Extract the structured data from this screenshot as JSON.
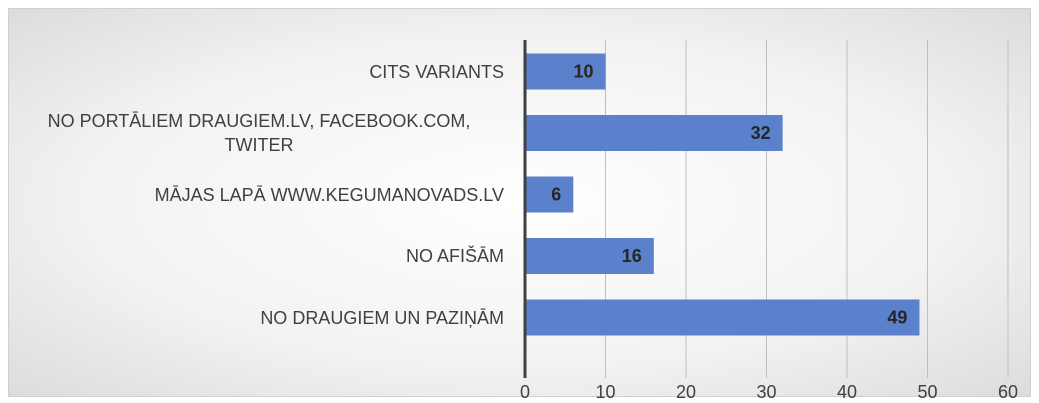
{
  "chart_data": {
    "type": "bar",
    "orientation": "horizontal",
    "categories": [
      "CITS VARIANTS",
      "NO PORTĀLIEM DRAUGIEM.LV, FACEBOOK.COM, TWITER",
      "MĀJAS LAPĀ WWW.KEGUMANOVADS.LV",
      "NO AFIŠĀM",
      "NO DRAUGIEM UN PAZIŅĀM"
    ],
    "values": [
      10,
      32,
      6,
      16,
      49
    ],
    "color": "#5b80cc",
    "xlim": [
      0,
      60
    ],
    "xticks": [
      0,
      10,
      20,
      30,
      40,
      50,
      60
    ],
    "grid": true
  }
}
